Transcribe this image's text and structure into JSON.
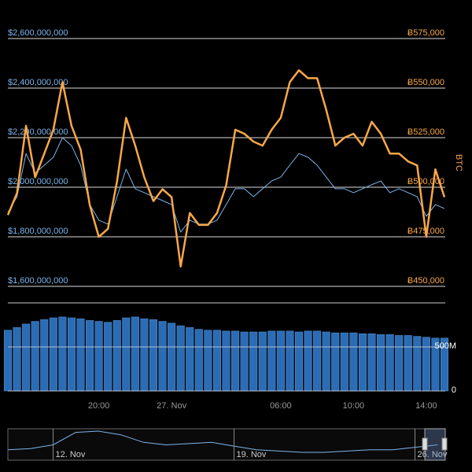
{
  "chart_data": [
    {
      "type": "line",
      "y2label": "BTC",
      "ylim": [
        1600000000,
        2600000000
      ],
      "y2lim": [
        450000,
        575000
      ],
      "yticks": [
        {
          "value": 1600000000,
          "label": "$1,600,000,000"
        },
        {
          "value": 1800000000,
          "label": "$1,800,000,000"
        },
        {
          "value": 2000000000,
          "label": "$2,000,000,000"
        },
        {
          "value": 2200000000,
          "label": "$2,200,000,000"
        },
        {
          "value": 2400000000,
          "label": "$2,400,000,000"
        },
        {
          "value": 2600000000,
          "label": "$2,600,000,000"
        }
      ],
      "y2ticks": [
        {
          "value": 450000,
          "label": "Ƀ450,000"
        },
        {
          "value": 475000,
          "label": "Ƀ475,000"
        },
        {
          "value": 500000,
          "label": "Ƀ500,000"
        },
        {
          "value": 525000,
          "label": "Ƀ525,000"
        },
        {
          "value": 550000,
          "label": "Ƀ550,000"
        },
        {
          "value": 575000,
          "label": "Ƀ575,000"
        }
      ],
      "grid": true,
      "categories": [
        null,
        null,
        null,
        null,
        null,
        null,
        null,
        null,
        null,
        null,
        "20:00",
        null,
        null,
        null,
        null,
        null,
        null,
        null,
        "27. Nov",
        null,
        null,
        null,
        null,
        null,
        null,
        null,
        null,
        null,
        null,
        null,
        "06:00",
        null,
        null,
        null,
        null,
        null,
        null,
        null,
        "10:00",
        null,
        null,
        null,
        null,
        null,
        null,
        null,
        "14:00",
        null,
        null
      ],
      "series": [
        {
          "color": "#7cb5ec",
          "values": [
            1898000000,
            1962000000,
            2136000000,
            2057000000,
            2089000000,
            2121000000,
            2200000000,
            2168000000,
            2089000000,
            1930000000,
            1867000000,
            1851000000,
            1962000000,
            2073000000,
            1994000000,
            1978000000,
            1962000000,
            1946000000,
            1930000000,
            1819000000,
            1867000000,
            1851000000,
            1851000000,
            1867000000,
            1930000000,
            1994000000,
            1994000000,
            1962000000,
            1994000000,
            2025000000,
            2041000000,
            2089000000,
            2136000000,
            2121000000,
            2089000000,
            2041000000,
            1994000000,
            1994000000,
            1978000000,
            1994000000,
            2010000000,
            2025000000,
            1978000000,
            1994000000,
            1978000000,
            1962000000,
            1883000000,
            1930000000,
            1914000000
          ]
        },
        {
          "color": "#f8a848",
          "axis": "y2",
          "values": [
            486000,
            497000,
            531000,
            505000,
            517000,
            529000,
            553000,
            531000,
            519000,
            491000,
            475000,
            479000,
            503000,
            535000,
            521000,
            505000,
            493000,
            499000,
            495000,
            460000,
            487000,
            481000,
            481000,
            487000,
            501000,
            529000,
            527000,
            523000,
            521000,
            529000,
            535000,
            553000,
            559000,
            555000,
            555000,
            539000,
            521000,
            525000,
            527000,
            521000,
            533000,
            527000,
            517000,
            517000,
            513000,
            511000,
            475000,
            509000,
            495000
          ]
        }
      ]
    },
    {
      "type": "bar",
      "color": "#2b6cb5",
      "ylim": [
        0,
        1000000000
      ],
      "yticks": [
        0,
        {
          "value": 500000000,
          "label": "500M"
        }
      ],
      "values": [
        690000000,
        720000000,
        760000000,
        790000000,
        810000000,
        830000000,
        840000000,
        830000000,
        820000000,
        800000000,
        790000000,
        780000000,
        800000000,
        830000000,
        840000000,
        820000000,
        810000000,
        790000000,
        770000000,
        740000000,
        720000000,
        700000000,
        690000000,
        690000000,
        680000000,
        680000000,
        670000000,
        670000000,
        670000000,
        680000000,
        680000000,
        680000000,
        670000000,
        680000000,
        680000000,
        670000000,
        660000000,
        660000000,
        660000000,
        650000000,
        650000000,
        640000000,
        640000000,
        630000000,
        630000000,
        620000000,
        610000000,
        600000000,
        600000000
      ]
    },
    {
      "type": "line",
      "color": "#7cb5ec",
      "categories": [
        null,
        null,
        "12. Nov",
        null,
        null,
        null,
        null,
        null,
        null,
        null,
        "19. Nov",
        null,
        null,
        null,
        null,
        null,
        null,
        null,
        "26. Nov",
        null
      ],
      "values": [
        1200000000,
        1250000000,
        1400000000,
        1900000000,
        1950000000,
        1800000000,
        1500000000,
        1400000000,
        1450000000,
        1500000000,
        1350000000,
        1200000000,
        1150000000,
        1100000000,
        1100000000,
        1150000000,
        1200000000,
        1200000000,
        1300000000,
        1400000000
      ]
    }
  ]
}
